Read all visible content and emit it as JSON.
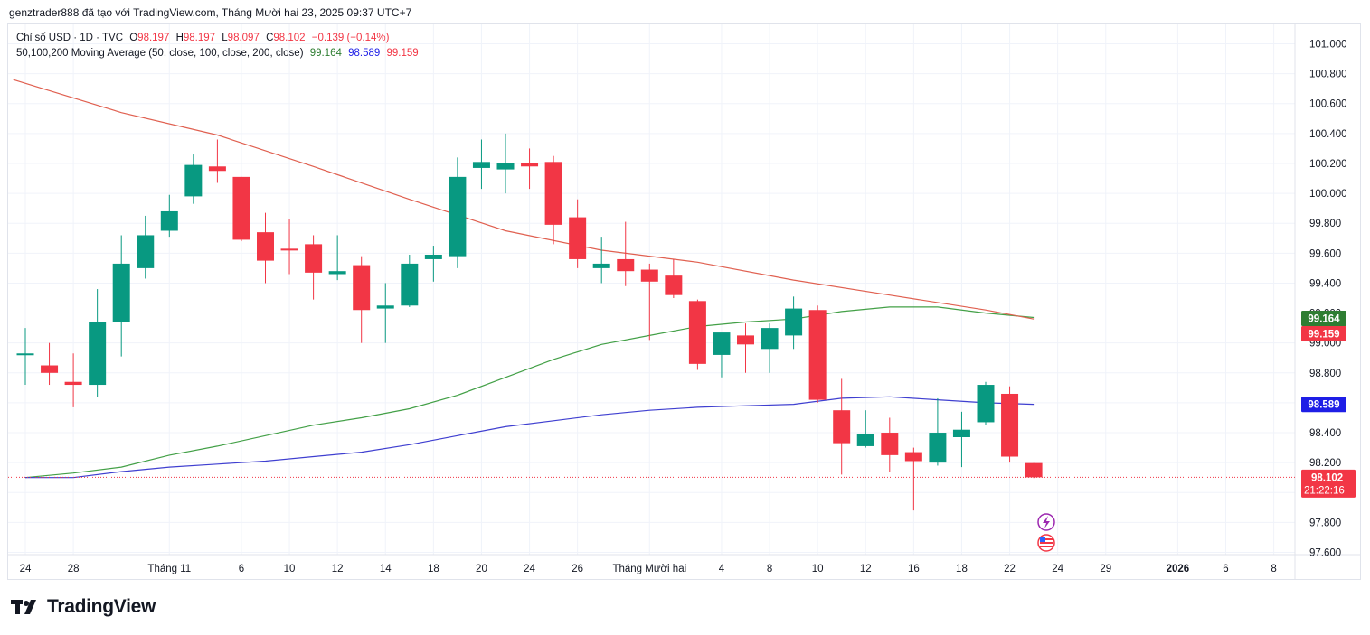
{
  "caption": "genztrader888 đã tạo với TradingView.com, Tháng Mười hai 23, 2025 09:37 UTC+7",
  "legend": {
    "symbol": "Chỉ số USD · 1D · TVC",
    "o_label": "O",
    "o_value": "98.197",
    "h_label": "H",
    "h_value": "98.197",
    "l_label": "L",
    "l_value": "98.097",
    "c_label": "C",
    "c_value": "98.102",
    "change": "−0.139 (−0.14%)",
    "ma_label": "50,100,200 Moving Average (50, close, 100, close, 200, close)",
    "ma50_value": "99.164",
    "ma100_value": "98.589",
    "ma200_value": "99.159"
  },
  "brand": "TradingView",
  "price_tags": [
    {
      "label": "99.164",
      "value": 99.164,
      "color": "#2e7d32"
    },
    {
      "label": "99.159",
      "value": 99.159,
      "color": "#f23645"
    },
    {
      "label": "98.589",
      "value": 98.589,
      "color": "#1e1ee6"
    }
  ],
  "last_price": {
    "label": "98.102",
    "countdown": "21:22:16",
    "value": 98.102,
    "color": "#f23645"
  },
  "chart_data": {
    "type": "candlestick",
    "ylim": [
      97.55,
      101.1
    ],
    "y_ticks": [
      {
        "label": "101.000",
        "value": 101.0
      },
      {
        "label": "100.800",
        "value": 100.8
      },
      {
        "label": "100.600",
        "value": 100.6
      },
      {
        "label": "100.400",
        "value": 100.4
      },
      {
        "label": "100.200",
        "value": 100.2
      },
      {
        "label": "100.000",
        "value": 100.0
      },
      {
        "label": "99.800",
        "value": 99.8
      },
      {
        "label": "99.600",
        "value": 99.6
      },
      {
        "label": "99.400",
        "value": 99.4
      },
      {
        "label": "99.200",
        "value": 99.2
      },
      {
        "label": "99.000",
        "value": 99.0
      },
      {
        "label": "98.800",
        "value": 98.8
      },
      {
        "label": "98.600",
        "value": 98.6
      },
      {
        "label": "98.400",
        "value": 98.4
      },
      {
        "label": "98.200",
        "value": 98.2
      },
      {
        "label": "98.000",
        "value": 98.0
      },
      {
        "label": "97.800",
        "value": 97.8
      },
      {
        "label": "97.600",
        "value": 97.6
      }
    ],
    "x_ticks": [
      {
        "label": "24",
        "i": 0
      },
      {
        "label": "28",
        "i": 2
      },
      {
        "label": "Tháng 11",
        "i": 6
      },
      {
        "label": "6",
        "i": 9
      },
      {
        "label": "10",
        "i": 11
      },
      {
        "label": "12",
        "i": 13
      },
      {
        "label": "14",
        "i": 15
      },
      {
        "label": "18",
        "i": 17
      },
      {
        "label": "20",
        "i": 19
      },
      {
        "label": "24",
        "i": 21
      },
      {
        "label": "26",
        "i": 23
      },
      {
        "label": "Tháng Mười hai",
        "i": 26
      },
      {
        "label": "4",
        "i": 29
      },
      {
        "label": "8",
        "i": 31
      },
      {
        "label": "10",
        "i": 33
      },
      {
        "label": "12",
        "i": 35
      },
      {
        "label": "16",
        "i": 37
      },
      {
        "label": "18",
        "i": 39
      },
      {
        "label": "22",
        "i": 41
      },
      {
        "label": "24",
        "i": 43
      },
      {
        "label": "29",
        "i": 45
      },
      {
        "label": "2026",
        "i": 48,
        "bold": true
      },
      {
        "label": "6",
        "i": 50
      },
      {
        "label": "8",
        "i": 52
      }
    ],
    "candles": [
      {
        "o": 98.93,
        "h": 99.1,
        "l": 98.72,
        "c": 98.93
      },
      {
        "o": 98.85,
        "h": 99.0,
        "l": 98.72,
        "c": 98.8
      },
      {
        "o": 98.74,
        "h": 98.93,
        "l": 98.57,
        "c": 98.72
      },
      {
        "o": 98.72,
        "h": 99.36,
        "l": 98.64,
        "c": 99.14
      },
      {
        "o": 99.14,
        "h": 99.72,
        "l": 98.91,
        "c": 99.53
      },
      {
        "o": 99.5,
        "h": 99.85,
        "l": 99.43,
        "c": 99.72
      },
      {
        "o": 99.75,
        "h": 99.99,
        "l": 99.71,
        "c": 99.88
      },
      {
        "o": 99.98,
        "h": 100.26,
        "l": 99.93,
        "c": 100.19
      },
      {
        "o": 100.18,
        "h": 100.36,
        "l": 100.07,
        "c": 100.15
      },
      {
        "o": 100.11,
        "h": 100.11,
        "l": 99.68,
        "c": 99.69
      },
      {
        "o": 99.74,
        "h": 99.87,
        "l": 99.4,
        "c": 99.55
      },
      {
        "o": 99.63,
        "h": 99.83,
        "l": 99.46,
        "c": 99.62
      },
      {
        "o": 99.66,
        "h": 99.72,
        "l": 99.29,
        "c": 99.47
      },
      {
        "o": 99.46,
        "h": 99.72,
        "l": 99.42,
        "c": 99.48
      },
      {
        "o": 99.52,
        "h": 99.58,
        "l": 99.0,
        "c": 99.22
      },
      {
        "o": 99.23,
        "h": 99.4,
        "l": 99.0,
        "c": 99.25
      },
      {
        "o": 99.25,
        "h": 99.59,
        "l": 99.24,
        "c": 99.53
      },
      {
        "o": 99.56,
        "h": 99.65,
        "l": 99.41,
        "c": 99.59
      },
      {
        "o": 99.58,
        "h": 100.24,
        "l": 99.5,
        "c": 100.11
      },
      {
        "o": 100.17,
        "h": 100.36,
        "l": 100.03,
        "c": 100.21
      },
      {
        "o": 100.16,
        "h": 100.4,
        "l": 100.0,
        "c": 100.2
      },
      {
        "o": 100.2,
        "h": 100.3,
        "l": 100.03,
        "c": 100.18
      },
      {
        "o": 100.21,
        "h": 100.25,
        "l": 99.66,
        "c": 99.79
      },
      {
        "o": 99.84,
        "h": 99.96,
        "l": 99.5,
        "c": 99.56
      },
      {
        "o": 99.5,
        "h": 99.71,
        "l": 99.4,
        "c": 99.53
      },
      {
        "o": 99.56,
        "h": 99.81,
        "l": 99.38,
        "c": 99.48
      },
      {
        "o": 99.49,
        "h": 99.53,
        "l": 99.02,
        "c": 99.41
      },
      {
        "o": 99.45,
        "h": 99.56,
        "l": 99.3,
        "c": 99.32
      },
      {
        "o": 99.28,
        "h": 99.29,
        "l": 98.82,
        "c": 98.86
      },
      {
        "o": 98.92,
        "h": 99.06,
        "l": 98.77,
        "c": 99.07
      },
      {
        "o": 99.05,
        "h": 99.13,
        "l": 98.8,
        "c": 98.99
      },
      {
        "o": 98.96,
        "h": 99.13,
        "l": 98.8,
        "c": 99.1
      },
      {
        "o": 99.05,
        "h": 99.31,
        "l": 98.96,
        "c": 99.23
      },
      {
        "o": 99.22,
        "h": 99.25,
        "l": 98.6,
        "c": 98.62
      },
      {
        "o": 98.55,
        "h": 98.76,
        "l": 98.12,
        "c": 98.33
      },
      {
        "o": 98.31,
        "h": 98.55,
        "l": 98.3,
        "c": 98.39
      },
      {
        "o": 98.4,
        "h": 98.5,
        "l": 98.14,
        "c": 98.25
      },
      {
        "o": 98.27,
        "h": 98.3,
        "l": 97.88,
        "c": 98.21
      },
      {
        "o": 98.2,
        "h": 98.63,
        "l": 98.18,
        "c": 98.4
      },
      {
        "o": 98.37,
        "h": 98.54,
        "l": 98.17,
        "c": 98.42
      },
      {
        "o": 98.47,
        "h": 98.74,
        "l": 98.45,
        "c": 98.72
      },
      {
        "o": 98.66,
        "h": 98.71,
        "l": 98.2,
        "c": 98.24
      },
      {
        "o": 98.197,
        "h": 98.197,
        "l": 98.097,
        "c": 98.102
      }
    ],
    "series": [
      {
        "name": "50",
        "color": "#43a047",
        "points": [
          [
            0,
            98.1
          ],
          [
            2,
            98.13
          ],
          [
            4,
            98.17
          ],
          [
            6,
            98.25
          ],
          [
            8,
            98.31
          ],
          [
            10,
            98.38
          ],
          [
            12,
            98.45
          ],
          [
            14,
            98.5
          ],
          [
            16,
            98.56
          ],
          [
            18,
            98.65
          ],
          [
            20,
            98.77
          ],
          [
            22,
            98.89
          ],
          [
            24,
            98.99
          ],
          [
            26,
            99.05
          ],
          [
            28,
            99.11
          ],
          [
            30,
            99.14
          ],
          [
            32,
            99.16
          ],
          [
            34,
            99.21
          ],
          [
            36,
            99.24
          ],
          [
            38,
            99.24
          ],
          [
            40,
            99.2
          ],
          [
            42,
            99.17
          ]
        ]
      },
      {
        "name": "100",
        "color": "#3f3fd0",
        "points": [
          [
            0,
            98.1
          ],
          [
            2,
            98.1
          ],
          [
            4,
            98.14
          ],
          [
            6,
            98.17
          ],
          [
            8,
            98.19
          ],
          [
            10,
            98.21
          ],
          [
            12,
            98.24
          ],
          [
            14,
            98.27
          ],
          [
            16,
            98.32
          ],
          [
            18,
            98.38
          ],
          [
            20,
            98.44
          ],
          [
            22,
            98.48
          ],
          [
            24,
            98.52
          ],
          [
            26,
            98.55
          ],
          [
            28,
            98.57
          ],
          [
            30,
            98.58
          ],
          [
            32,
            98.59
          ],
          [
            34,
            98.63
          ],
          [
            36,
            98.64
          ],
          [
            38,
            98.62
          ],
          [
            40,
            98.6
          ],
          [
            42,
            98.59
          ]
        ]
      },
      {
        "name": "200",
        "color": "#e06050",
        "points": [
          [
            -0.5,
            100.76
          ],
          [
            4,
            100.54
          ],
          [
            8,
            100.39
          ],
          [
            12,
            100.18
          ],
          [
            16,
            99.96
          ],
          [
            20,
            99.75
          ],
          [
            24,
            99.62
          ],
          [
            28,
            99.54
          ],
          [
            32,
            99.42
          ],
          [
            36,
            99.32
          ],
          [
            40,
            99.22
          ],
          [
            42,
            99.16
          ]
        ]
      }
    ]
  }
}
